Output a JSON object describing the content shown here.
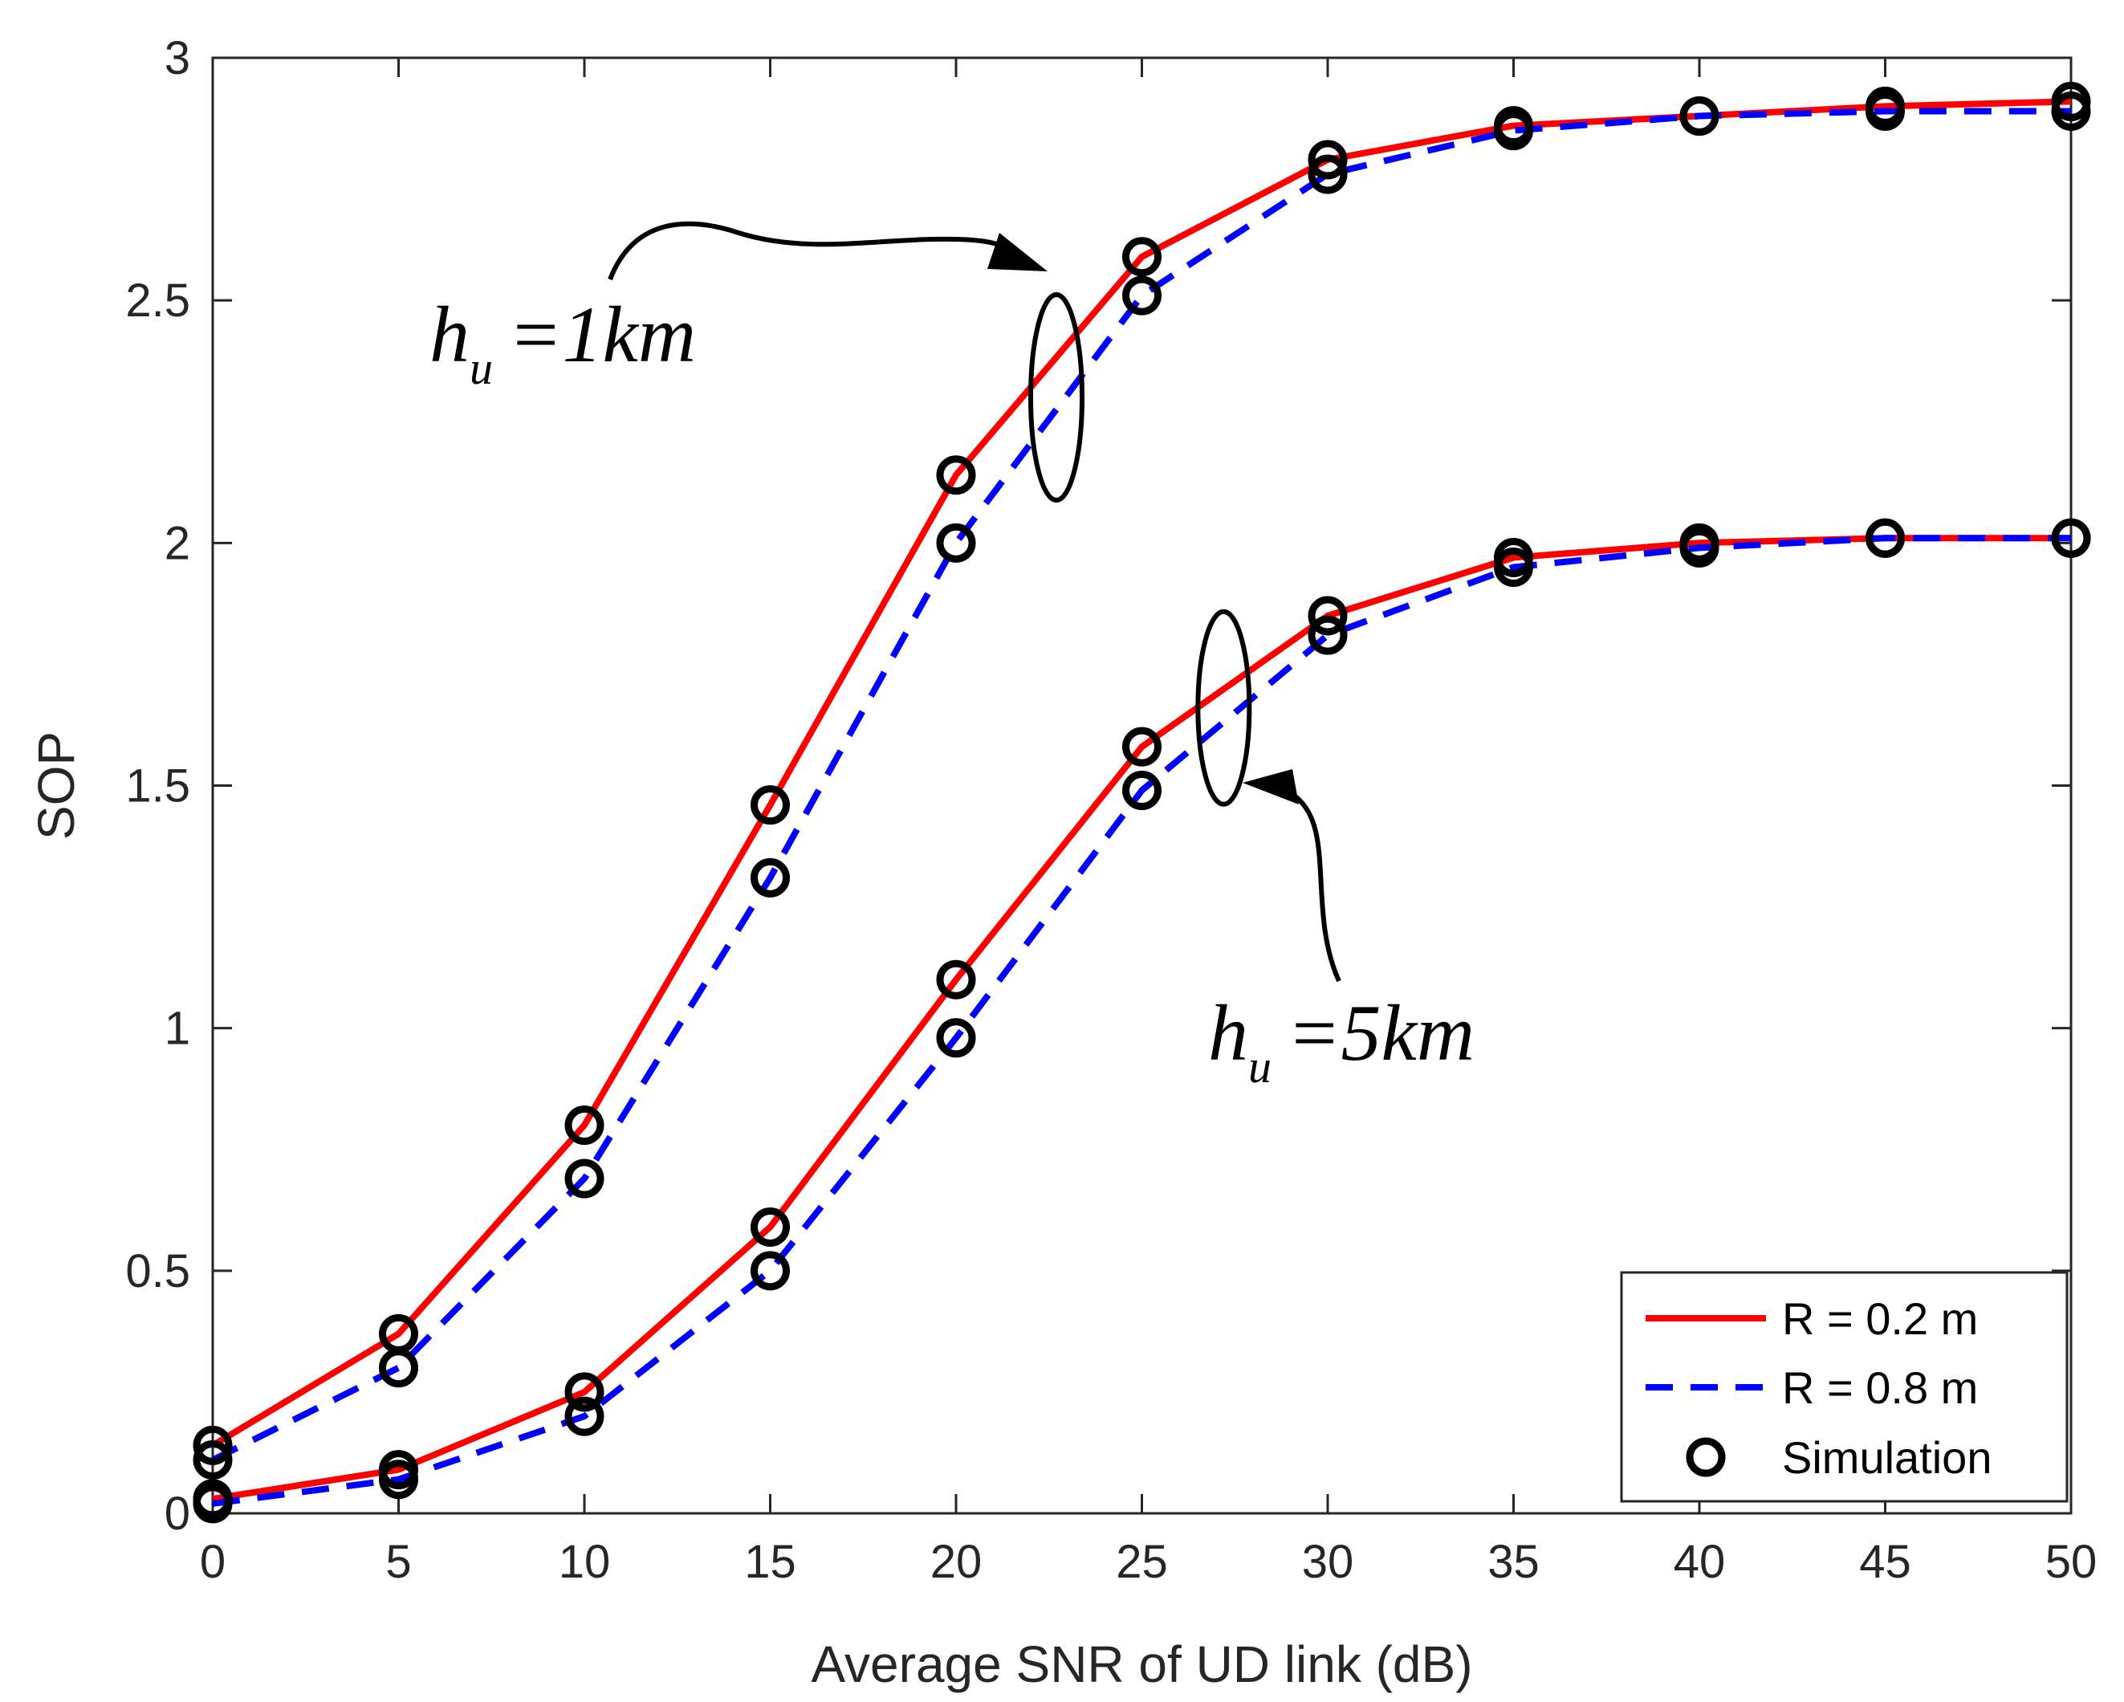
{
  "chart_data": {
    "type": "line",
    "title": "",
    "xlabel": "Average SNR of UD link (dB)",
    "ylabel": "SOP",
    "xlim": [
      0,
      50
    ],
    "ylim": [
      0,
      3
    ],
    "xticks": [
      0,
      5,
      10,
      15,
      20,
      25,
      30,
      35,
      40,
      45,
      50
    ],
    "yticks": [
      0,
      0.5,
      1,
      1.5,
      2,
      2.5,
      3
    ],
    "grid": false,
    "legend_position": "bottom-right",
    "x": [
      0,
      5,
      10,
      15,
      20,
      25,
      30,
      35,
      40,
      45,
      50
    ],
    "series": [
      {
        "name": "R = 0.2 m",
        "group": "hu=1km",
        "color": "#ff0000",
        "style": "solid",
        "values": [
          0.14,
          0.37,
          0.8,
          1.46,
          2.14,
          2.59,
          2.79,
          2.86,
          2.88,
          2.9,
          2.91
        ]
      },
      {
        "name": "R = 0.8 m",
        "group": "hu=1km",
        "color": "#0000ff",
        "style": "dashed",
        "values": [
          0.11,
          0.3,
          0.69,
          1.31,
          2.0,
          2.51,
          2.76,
          2.85,
          2.88,
          2.89,
          2.89
        ]
      },
      {
        "name": "R = 0.2 m",
        "group": "hu=5km",
        "color": "#ff0000",
        "style": "solid",
        "values": [
          0.03,
          0.09,
          0.25,
          0.59,
          1.1,
          1.58,
          1.85,
          1.97,
          2.0,
          2.01,
          2.01
        ]
      },
      {
        "name": "R = 0.8 m",
        "group": "hu=5km",
        "color": "#0000ff",
        "style": "dashed",
        "values": [
          0.02,
          0.07,
          0.2,
          0.5,
          0.98,
          1.49,
          1.81,
          1.95,
          1.99,
          2.01,
          2.01
        ]
      }
    ],
    "legend": {
      "entries": [
        "R = 0.2 m",
        "R = 0.8 m",
        "Simulation"
      ]
    },
    "annotations": [
      {
        "main": "h",
        "sub": "u",
        "rest": "=1km"
      },
      {
        "main": "h",
        "sub": "u",
        "rest": "=5km"
      }
    ],
    "colors": {
      "red": "#ff0000",
      "blue": "#0000ff",
      "marker": "#000000",
      "axis": "#262626"
    }
  }
}
